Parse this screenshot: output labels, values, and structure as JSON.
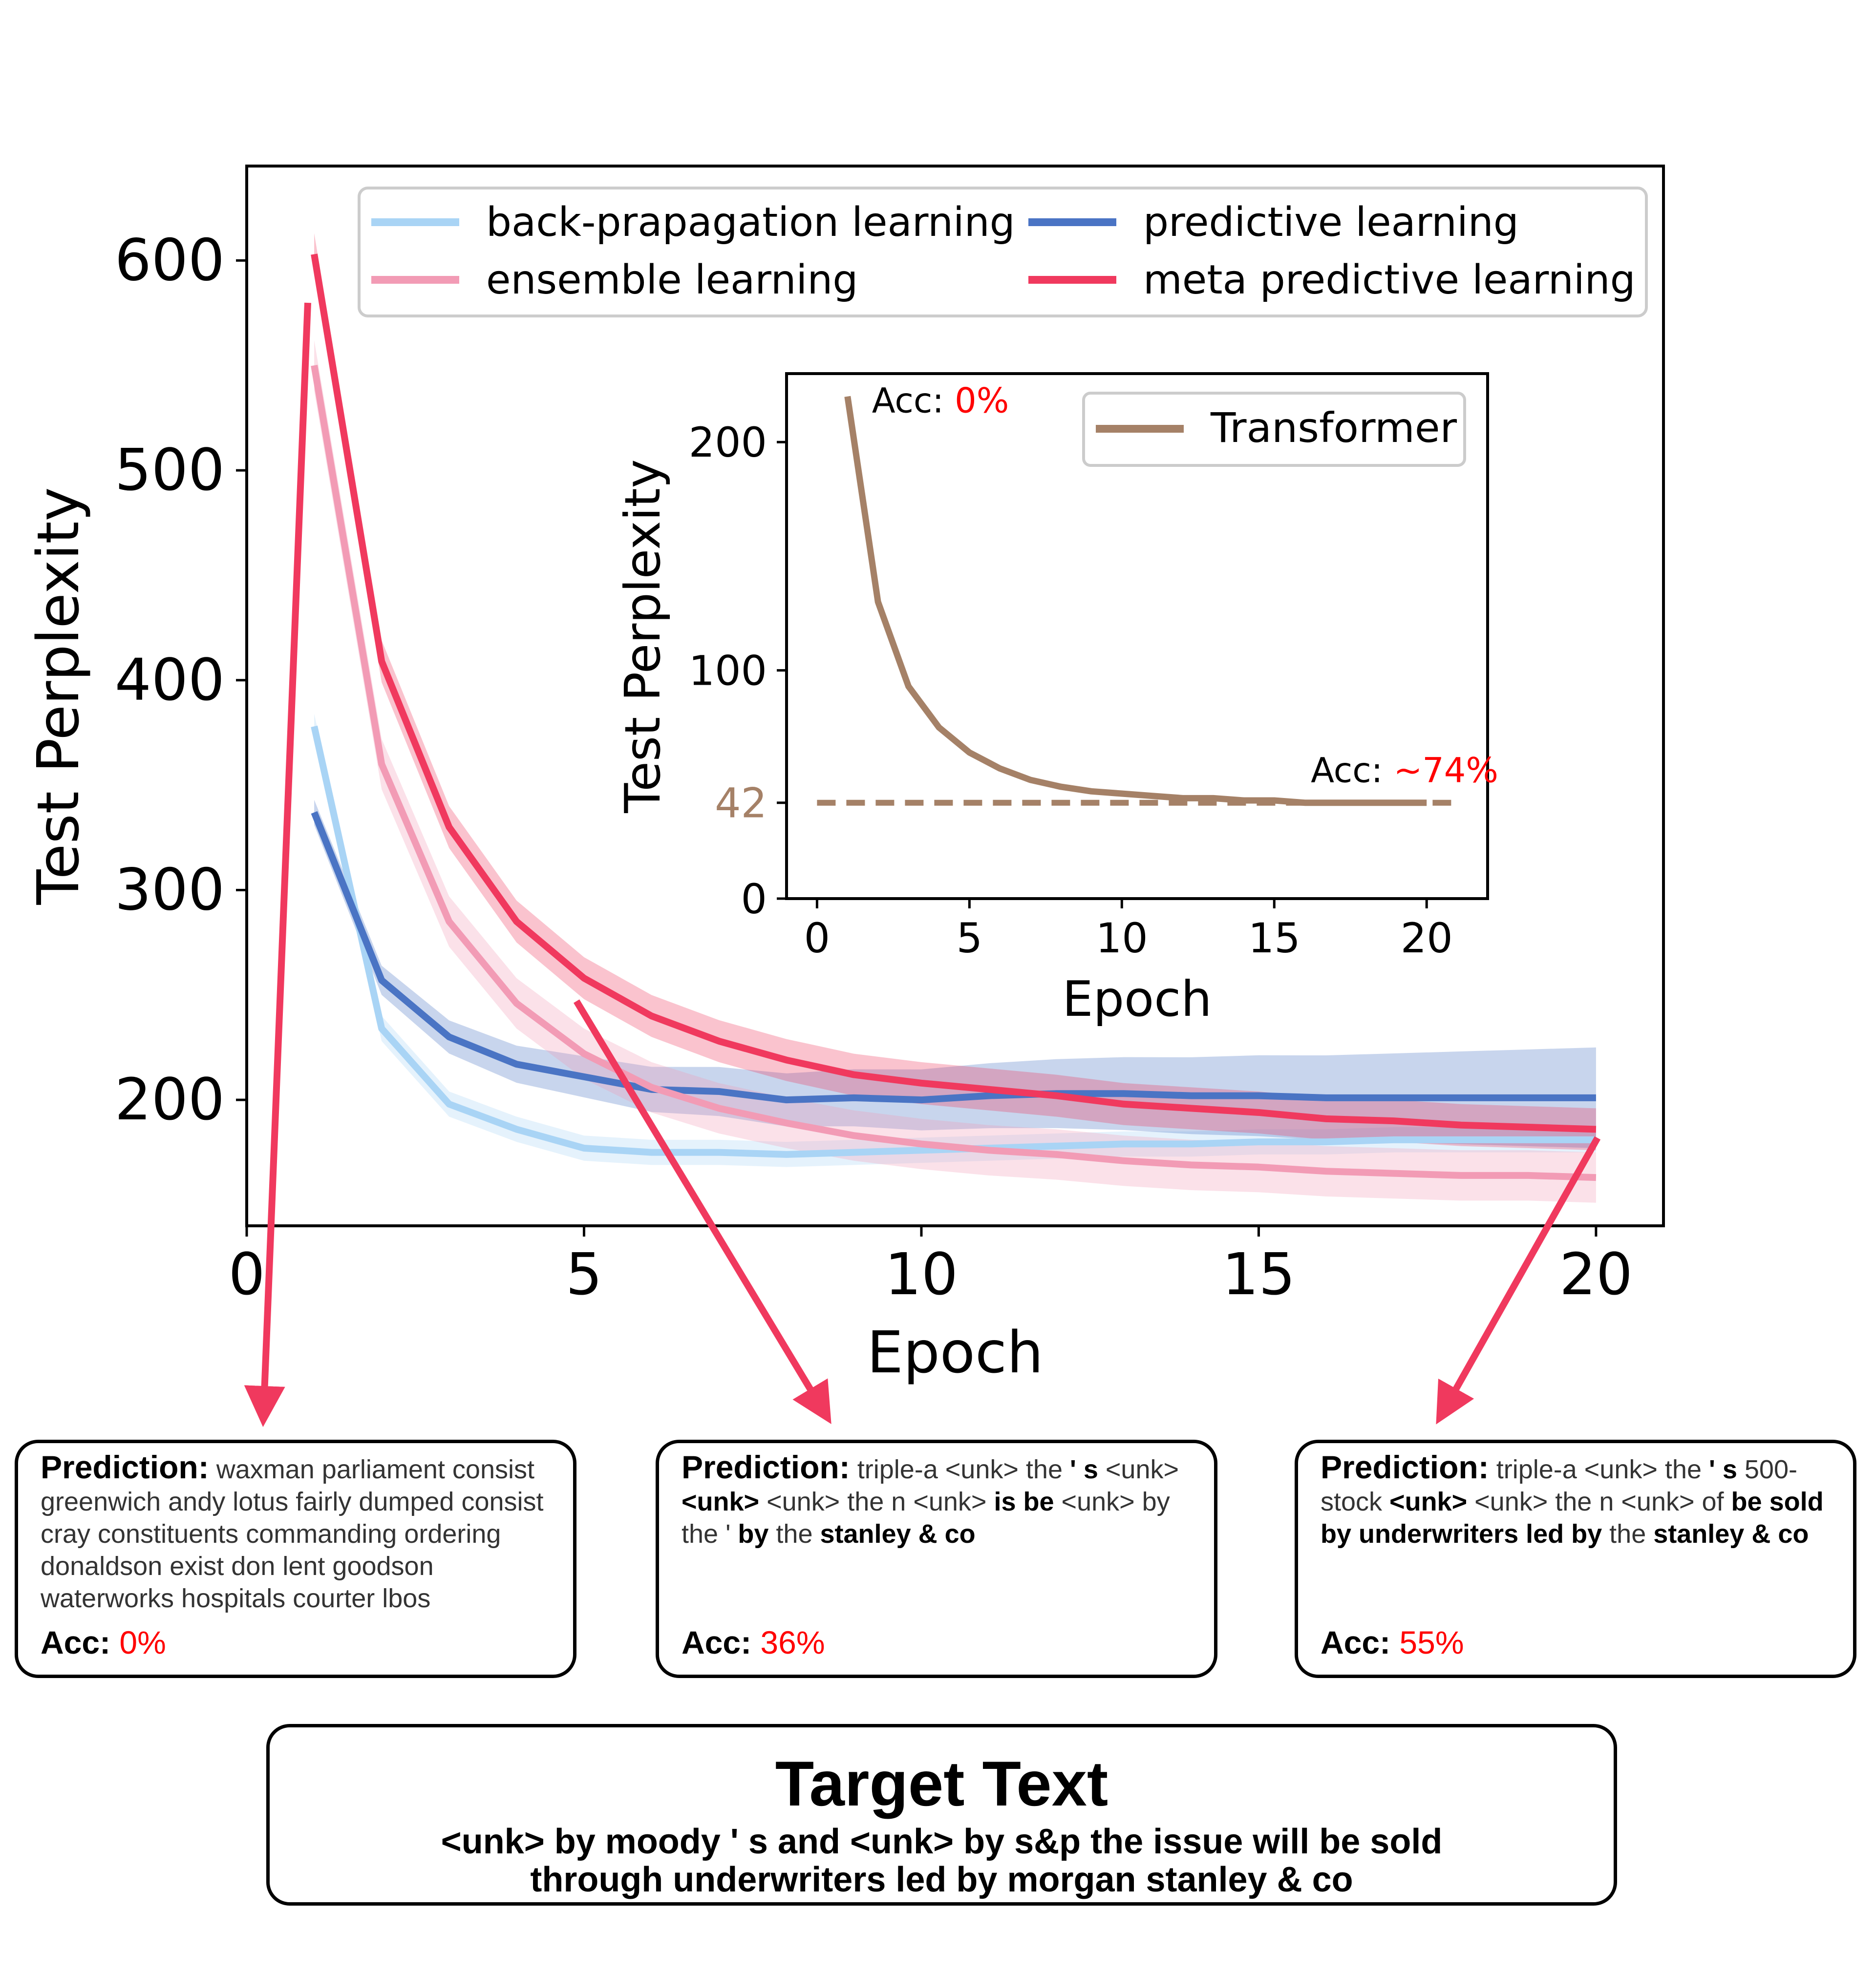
{
  "chart_data": [
    {
      "type": "line",
      "xlabel": "Epoch",
      "ylabel": "Test Perplexity",
      "xlim": [
        0,
        21
      ],
      "ylim": [
        140,
        645
      ],
      "xticks": [
        "0",
        "5",
        "10",
        "15",
        "20"
      ],
      "yticks": [
        "200",
        "300",
        "400",
        "500",
        "600"
      ],
      "legend_position": "top",
      "x": [
        1,
        2,
        3,
        4,
        5,
        6,
        7,
        8,
        9,
        10,
        11,
        12,
        13,
        14,
        15,
        16,
        17,
        18,
        19,
        20
      ],
      "series": [
        {
          "name": "back-prapagation learning",
          "color": "#a9d4f5",
          "band": 6,
          "values": [
            378,
            234,
            198,
            186,
            177,
            175,
            175,
            174,
            175,
            176,
            177,
            178,
            179,
            179,
            180,
            180,
            181,
            181,
            181,
            181
          ]
        },
        {
          "name": "predictive learning",
          "color": "#4a74c4",
          "band_start": 6,
          "band_end": 24,
          "values": [
            337,
            257,
            230,
            217,
            211,
            205,
            204,
            200,
            201,
            200,
            202,
            203,
            203,
            202,
            202,
            201,
            201,
            201,
            201,
            201
          ]
        },
        {
          "name": "ensemble learning",
          "color": "#f29bb5",
          "band": 12,
          "values": [
            550,
            360,
            285,
            246,
            222,
            206,
            196,
            189,
            183,
            179,
            176,
            174,
            171,
            169,
            168,
            166,
            165,
            164,
            164,
            163
          ]
        },
        {
          "name": "meta predictive learning",
          "color": "#f0395e",
          "band": 10,
          "values": [
            603,
            409,
            330,
            285,
            258,
            240,
            228,
            219,
            212,
            208,
            205,
            202,
            198,
            196,
            194,
            191,
            190,
            188,
            187,
            186
          ]
        }
      ]
    },
    {
      "type": "line",
      "xlabel": "Epoch",
      "ylabel": "Test Perplexity",
      "xlim": [
        -1,
        22
      ],
      "ylim": [
        0,
        230
      ],
      "xticks": [
        "0",
        "5",
        "10",
        "15",
        "20"
      ],
      "yticks": [
        "0",
        "42",
        "100",
        "200"
      ],
      "highlight_tick": "42",
      "legend_position": "top-right",
      "x": [
        1,
        2,
        3,
        4,
        5,
        6,
        7,
        8,
        9,
        10,
        11,
        12,
        13,
        14,
        15,
        16,
        17,
        18,
        19,
        20
      ],
      "series": [
        {
          "name": "Transformer",
          "color": "#a58167",
          "values": [
            220,
            130,
            93,
            75,
            64,
            57,
            52,
            49,
            47,
            46,
            45,
            44,
            44,
            43,
            43,
            42,
            42,
            42,
            42,
            42
          ]
        }
      ],
      "reference_line": {
        "y": 42,
        "from": 0,
        "to": 21,
        "style": "dashed"
      },
      "annotations": [
        {
          "label": "Acc: ",
          "value": "0%",
          "x": 1.8,
          "y": 213
        },
        {
          "label": "Acc: ",
          "value": "~74%",
          "x": 16.2,
          "y": 51
        }
      ]
    }
  ],
  "arrows_color": "#f0395e",
  "predictions": [
    {
      "label": "Prediction:",
      "text": "waxman parliament consist greenwich andy lotus fairly dumped consist cray constituents commanding ordering donaldson exist don lent goodson waterworks hospitals courter lbos",
      "acc_label": "Acc:",
      "acc_value": "0%"
    },
    {
      "label": "Prediction:",
      "t1": " triple-a <unk> the ",
      "b1": "' s",
      "t2": " <unk> ",
      "b2": "<unk>",
      "t3": " <unk> the n <unk> ",
      "b3": "is be",
      "t4": " <unk> by the ' ",
      "b4": "by",
      "t5": " the ",
      "b5": "stanley & co",
      "acc_label": "Acc:",
      "acc_value": "36%"
    },
    {
      "label": "Prediction:",
      "t1": " triple-a <unk> the ",
      "b1": "' s",
      "t2": " 500-stock ",
      "b2": "<unk>",
      "t3": " <unk> the n <unk> of ",
      "b3": "be sold by underwriters led by",
      "t4": " the ",
      "b4": "stanley & co",
      "acc_label": "Acc:",
      "acc_value": "55%"
    }
  ],
  "target": {
    "title": "Target Text",
    "line1": "<unk> by moody ' s and <unk> by s&p the issue will be sold",
    "line2": "through underwriters led by morgan stanley & co"
  }
}
